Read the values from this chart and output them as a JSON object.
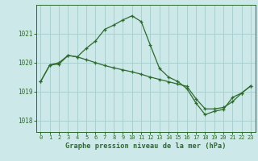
{
  "title": "Graphe pression niveau de la mer (hPa)",
  "background_color": "#cce8e8",
  "grid_color": "#aad0d0",
  "line_color": "#2d6a2d",
  "xlim": [
    -0.5,
    23.5
  ],
  "ylim": [
    1017.6,
    1022.0
  ],
  "yticks": [
    1018,
    1019,
    1020,
    1021
  ],
  "xticks": [
    0,
    1,
    2,
    3,
    4,
    5,
    6,
    7,
    8,
    9,
    10,
    11,
    12,
    13,
    14,
    15,
    16,
    17,
    18,
    19,
    20,
    21,
    22,
    23
  ],
  "series1_x": [
    0,
    1,
    2,
    3,
    4,
    5,
    6,
    7,
    8,
    9,
    10,
    11,
    12,
    13,
    14,
    15,
    16,
    17,
    18,
    19,
    20,
    21,
    22,
    23
  ],
  "series1_y": [
    1019.35,
    1019.92,
    1019.95,
    1020.25,
    1020.2,
    1020.5,
    1020.75,
    1021.15,
    1021.3,
    1021.48,
    1021.62,
    1021.42,
    1020.6,
    1019.8,
    1019.5,
    1019.35,
    1019.1,
    1018.6,
    1018.2,
    1018.32,
    1018.38,
    1018.8,
    1018.95,
    1019.2
  ],
  "series2_x": [
    0,
    1,
    2,
    3,
    4,
    5,
    6,
    7,
    8,
    9,
    10,
    11,
    12,
    13,
    14,
    15,
    16,
    17,
    18,
    19,
    20,
    21,
    22,
    23
  ],
  "series2_y": [
    1019.35,
    1019.92,
    1020.0,
    1020.25,
    1020.2,
    1020.1,
    1020.0,
    1019.9,
    1019.82,
    1019.75,
    1019.68,
    1019.6,
    1019.5,
    1019.42,
    1019.34,
    1019.26,
    1019.18,
    1018.75,
    1018.4,
    1018.4,
    1018.45,
    1018.65,
    1018.95,
    1019.2
  ]
}
